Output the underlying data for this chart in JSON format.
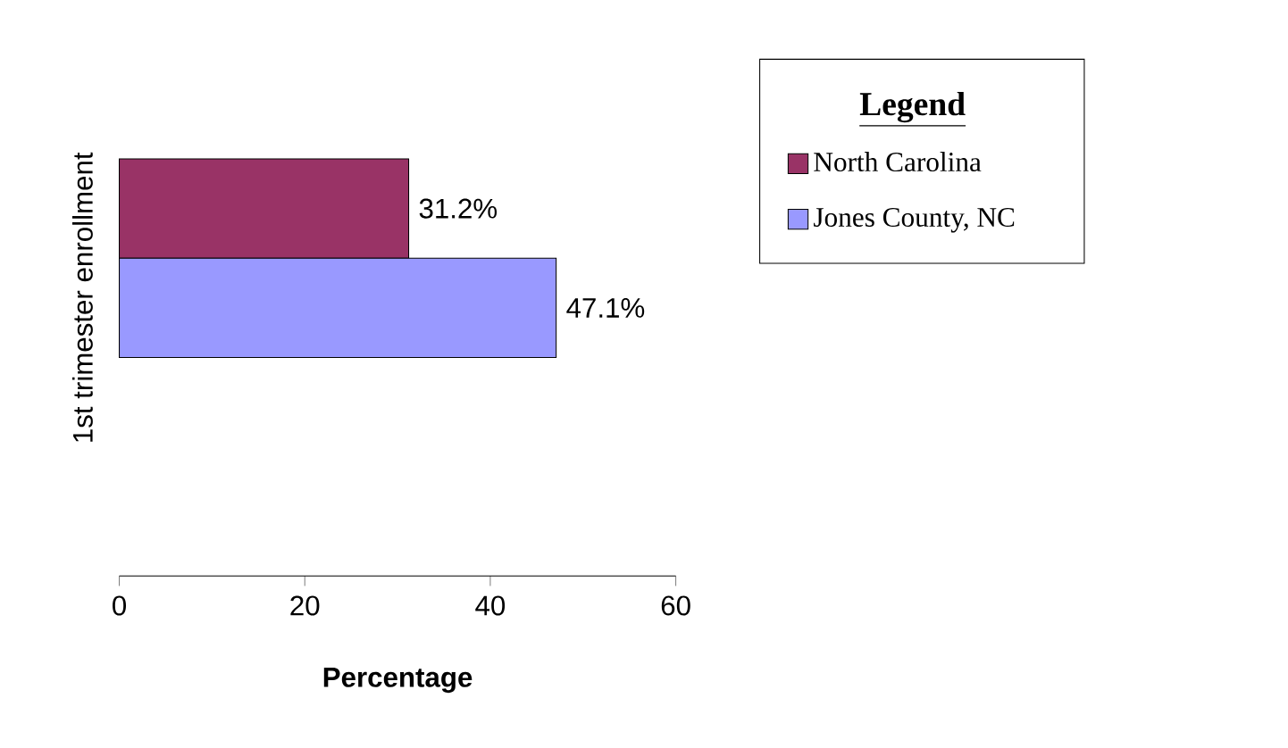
{
  "chart_data": {
    "type": "bar",
    "orientation": "horizontal",
    "categories": [
      null
    ],
    "xlabel": "Percentage",
    "ylabel": "1st trimester enrollment",
    "legend_title": "Legend",
    "legend": "right",
    "series": [
      {
        "name": "North Carolina",
        "color": "#993366",
        "values": [
          31.2
        ],
        "value_labels": [
          "31.2%"
        ]
      },
      {
        "name": "Jones County, NC",
        "color": "#9999ff",
        "values": [
          47.1
        ],
        "value_labels": [
          "47.1%"
        ]
      }
    ],
    "xlim": [
      0,
      60
    ],
    "xticks": [
      0,
      20,
      40,
      60
    ]
  }
}
